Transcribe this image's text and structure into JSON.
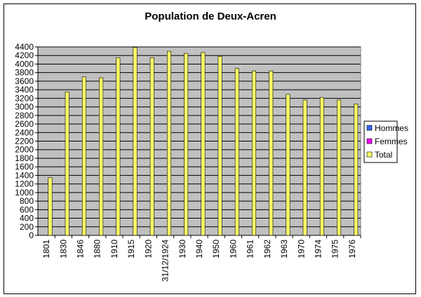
{
  "chart_data": {
    "type": "bar",
    "title": "Population de Deux-Acren",
    "categories": [
      "1801",
      "1830",
      "1846",
      "1880",
      "1910",
      "1915",
      "1920",
      "31/12/1924",
      "1930",
      "1940",
      "1950",
      "1960",
      "1961",
      "1962",
      "1963",
      "1970",
      "1974",
      "1975",
      "1976"
    ],
    "series": [
      {
        "name": "Hommes",
        "color": "#3366ff",
        "values": [
          null,
          null,
          null,
          null,
          null,
          null,
          null,
          null,
          null,
          null,
          null,
          null,
          null,
          null,
          null,
          null,
          null,
          null,
          null
        ]
      },
      {
        "name": "Femmes",
        "color": "#ff00ff",
        "values": [
          null,
          null,
          null,
          null,
          null,
          null,
          null,
          null,
          null,
          null,
          null,
          null,
          null,
          null,
          null,
          null,
          null,
          null,
          null
        ]
      },
      {
        "name": "Total",
        "color": "#ffff66",
        "values": [
          1350,
          3350,
          3700,
          3680,
          4150,
          4390,
          4150,
          4300,
          4250,
          4270,
          4180,
          3900,
          3840,
          3840,
          3290,
          3160,
          3220,
          3160,
          3070
        ]
      }
    ],
    "ylim": [
      0,
      4400
    ],
    "yticks": [
      0,
      200,
      400,
      600,
      800,
      1000,
      1200,
      1400,
      1600,
      1800,
      2000,
      2200,
      2400,
      2600,
      2800,
      3000,
      3200,
      3400,
      3600,
      3800,
      4000,
      4200,
      4400
    ],
    "grid": true,
    "legend": "right"
  }
}
